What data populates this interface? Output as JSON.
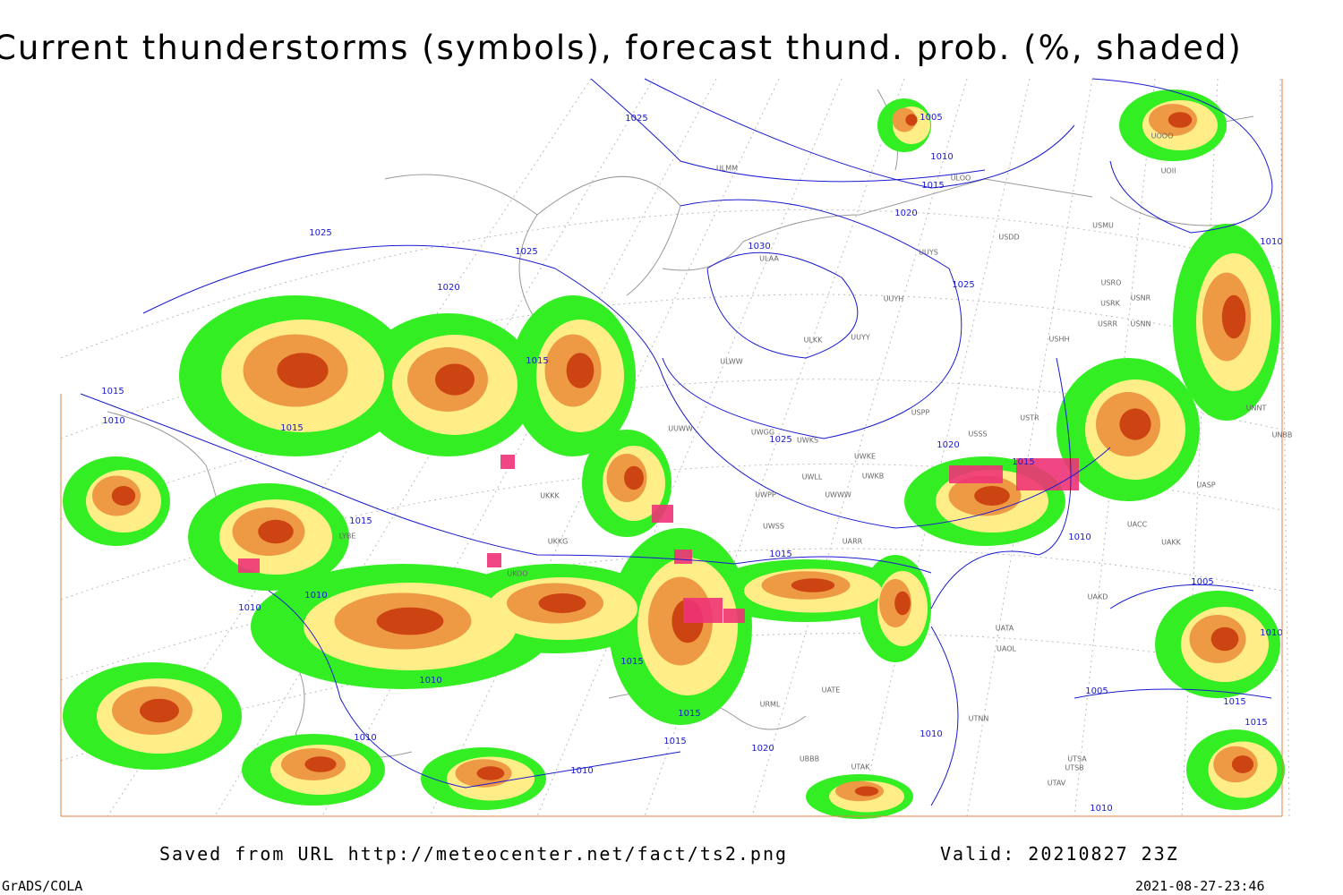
{
  "title": "Current thunderstorms (symbols), forecast thund. prob. (%, shaded)",
  "isobar_labels": [
    "1025",
    "1005",
    "1010",
    "1015",
    "1020",
    "1025",
    "1025",
    "1030",
    "1025",
    "1020",
    "1015",
    "1015",
    "1010",
    "1015",
    "1025",
    "1020",
    "1015",
    "1015",
    "1010",
    "1015",
    "1010",
    "1010",
    "1005",
    "1010",
    "1015",
    "1010",
    "1005",
    "1015",
    "1015",
    "1015",
    "1010",
    "1010",
    "1015",
    "1020",
    "1010",
    "1010",
    "1010"
  ],
  "station_labels": [
    "ULMM",
    "ULOO",
    "UUYS",
    "ULAA",
    "USDD",
    "USMU",
    "UUYH",
    "USRO",
    "USRK",
    "USNR",
    "USRR",
    "USNN",
    "USHH",
    "ULKK",
    "UUYY",
    "ULWW",
    "USPP",
    "USTR",
    "UUWW",
    "UWGG",
    "UWKS",
    "USSS",
    "UWKE",
    "UWLL",
    "UWKB",
    "UWPP",
    "UWWW",
    "UKKK",
    "UASP",
    "UNNT",
    "UNBB",
    "UACC",
    "UAKK",
    "UWSS",
    "UARR",
    "UAKD",
    "UATA",
    "UAOL",
    "UATE",
    "UTNN",
    "UTAK",
    "UTSA",
    "UTSB",
    "UTAV",
    "UBBB",
    "LYBE",
    "UKKG",
    "UKOO",
    "URML",
    "UOOO",
    "UOII"
  ],
  "footer": {
    "source": "Saved from URL http://meteocenter.net/fact/ts2.png",
    "valid": "Valid: 20210827 23Z",
    "software": "GrADS/COLA",
    "timestamp": "2021-08-27-23:46"
  }
}
